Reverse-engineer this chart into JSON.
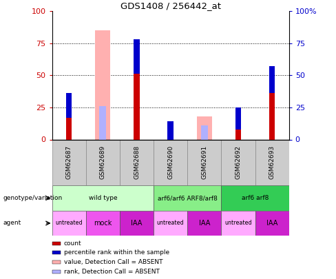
{
  "title": "GDS1408 / 256442_at",
  "samples": [
    "GSM62687",
    "GSM62689",
    "GSM62688",
    "GSM62690",
    "GSM62691",
    "GSM62692",
    "GSM62693"
  ],
  "count_values": [
    36,
    0,
    78,
    14,
    0,
    25,
    57
  ],
  "rank_values": [
    19,
    0,
    27,
    15,
    0,
    17,
    21
  ],
  "absent_value": [
    0,
    85,
    0,
    0,
    18,
    0,
    0
  ],
  "absent_rank": [
    0,
    26,
    0,
    0,
    11,
    0,
    0
  ],
  "ylim": [
    0,
    100
  ],
  "yticks": [
    0,
    25,
    50,
    75,
    100
  ],
  "bar_width": 0.45,
  "color_count": "#cc0000",
  "color_rank": "#0000cc",
  "color_absent_value": "#ffb0b0",
  "color_absent_rank": "#b0b0ff",
  "genotype_groups": [
    {
      "label": "wild type",
      "start": 0,
      "end": 3,
      "color": "#ccffcc"
    },
    {
      "label": "arf6/arf6 ARF8/arf8",
      "start": 3,
      "end": 5,
      "color": "#88ee88"
    },
    {
      "label": "arf6 arf8",
      "start": 5,
      "end": 7,
      "color": "#33cc55"
    }
  ],
  "agent_groups": [
    {
      "label": "untreated",
      "start": 0,
      "end": 1,
      "color": "#ffaaff"
    },
    {
      "label": "mock",
      "start": 1,
      "end": 2,
      "color": "#ee55ee"
    },
    {
      "label": "IAA",
      "start": 2,
      "end": 3,
      "color": "#cc22cc"
    },
    {
      "label": "untreated",
      "start": 3,
      "end": 4,
      "color": "#ffaaff"
    },
    {
      "label": "IAA",
      "start": 4,
      "end": 5,
      "color": "#cc22cc"
    },
    {
      "label": "untreated",
      "start": 5,
      "end": 6,
      "color": "#ffaaff"
    },
    {
      "label": "IAA",
      "start": 6,
      "end": 7,
      "color": "#cc22cc"
    }
  ],
  "legend_items": [
    {
      "label": "count",
      "color": "#cc0000"
    },
    {
      "label": "percentile rank within the sample",
      "color": "#0000cc"
    },
    {
      "label": "value, Detection Call = ABSENT",
      "color": "#ffb0b0"
    },
    {
      "label": "rank, Detection Call = ABSENT",
      "color": "#b0b0ff"
    }
  ],
  "left_labels": [
    {
      "text": "genotype/variation",
      "row": 1
    },
    {
      "text": "agent",
      "row": 2
    }
  ]
}
